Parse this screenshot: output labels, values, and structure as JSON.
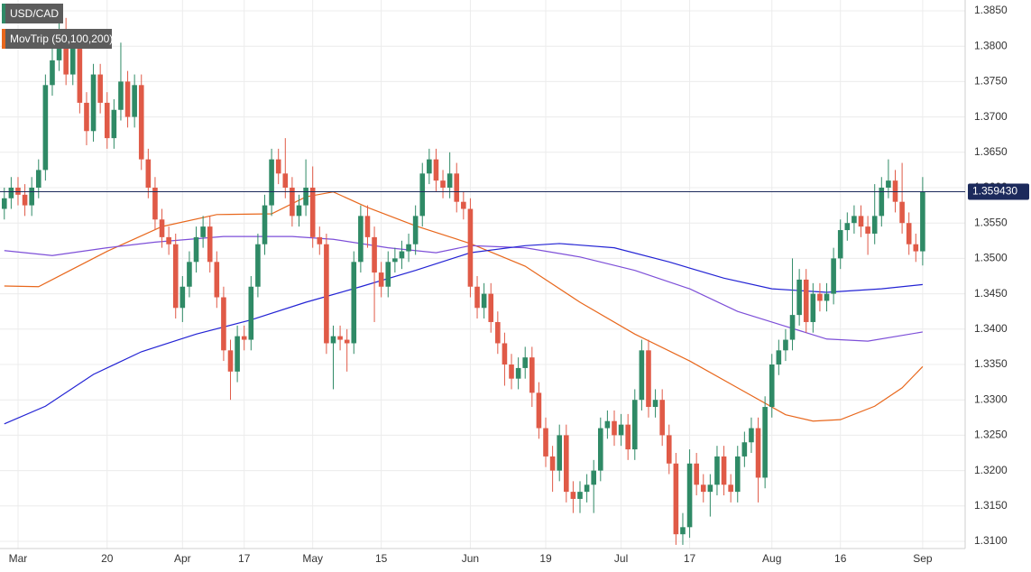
{
  "chart_data": {
    "type": "candlestick",
    "up_color": "#2f8a66",
    "down_color": "#e05a47",
    "x": [
      -2,
      -1,
      0,
      1,
      2,
      3,
      4,
      5,
      6,
      7,
      8,
      9,
      10,
      11,
      12,
      13,
      14,
      15,
      16,
      17,
      18,
      19,
      20,
      21,
      22,
      23,
      24,
      25,
      26,
      27,
      28,
      29,
      30,
      31,
      32,
      33,
      34,
      35,
      36,
      37,
      38,
      39,
      40,
      41,
      42,
      43,
      44,
      45,
      46,
      47,
      48,
      49,
      50,
      51,
      52,
      53,
      54,
      55,
      56,
      57,
      58,
      59,
      60,
      61,
      62,
      63,
      64,
      65,
      66,
      67,
      68,
      69,
      70,
      71,
      72,
      73,
      74,
      75,
      76,
      77,
      78,
      79,
      80,
      81,
      82,
      83,
      84,
      85,
      86,
      87,
      88,
      89,
      90,
      91,
      92,
      93,
      94,
      95,
      96,
      97,
      98,
      99,
      100,
      101,
      102,
      103,
      104,
      105,
      106,
      107,
      108,
      109,
      110,
      111,
      112,
      113,
      114,
      115,
      116,
      117,
      118,
      119,
      120,
      121,
      122,
      123,
      124,
      125,
      126,
      127,
      128,
      129,
      130,
      131,
      132
    ],
    "open": [
      1.357,
      1.3585,
      1.36,
      1.359,
      1.3575,
      1.36,
      1.3625,
      1.3745,
      1.378,
      1.3815,
      1.376,
      1.38,
      1.372,
      1.368,
      1.376,
      1.372,
      1.367,
      1.371,
      1.375,
      1.37,
      1.3745,
      1.364,
      1.36,
      1.3555,
      1.353,
      1.352,
      1.343,
      1.346,
      1.3495,
      1.353,
      1.3545,
      1.3495,
      1.3445,
      1.337,
      1.334,
      1.339,
      1.3385,
      1.346,
      1.352,
      1.3575,
      1.364,
      1.362,
      1.36,
      1.356,
      1.3575,
      1.36,
      1.353,
      1.352,
      1.338,
      1.339,
      1.3385,
      1.338,
      1.3495,
      1.356,
      1.353,
      1.348,
      1.346,
      1.3495,
      1.35,
      1.351,
      1.352,
      1.356,
      1.362,
      1.364,
      1.361,
      1.36,
      1.362,
      1.358,
      1.357,
      1.346,
      1.343,
      1.345,
      1.341,
      1.338,
      1.335,
      1.333,
      1.3345,
      1.336,
      1.331,
      1.326,
      1.322,
      1.32,
      1.325,
      1.317,
      1.316,
      1.317,
      1.318,
      1.32,
      1.326,
      1.327,
      1.325,
      1.3265,
      1.323,
      1.33,
      1.337,
      1.329,
      1.33,
      1.325,
      1.321,
      1.311,
      1.312,
      1.321,
      1.318,
      1.317,
      1.318,
      1.322,
      1.318,
      1.317,
      1.322,
      1.324,
      1.326,
      1.319,
      1.329,
      1.335,
      1.337,
      1.3385,
      1.342,
      1.347,
      1.341,
      1.345,
      1.344,
      1.345,
      1.35,
      1.354,
      1.355,
      1.356,
      1.3545,
      1.3535,
      1.356,
      1.36,
      1.361,
      1.358,
      1.355,
      1.352,
      1.351
    ],
    "high": [
      1.36,
      1.3615,
      1.3615,
      1.3605,
      1.3615,
      1.364,
      1.376,
      1.38,
      1.386,
      1.384,
      1.382,
      1.3815,
      1.3735,
      1.3775,
      1.3775,
      1.3735,
      1.3725,
      1.3805,
      1.3765,
      1.376,
      1.376,
      1.3655,
      1.3615,
      1.357,
      1.3545,
      1.3535,
      1.3475,
      1.351,
      1.3545,
      1.356,
      1.356,
      1.351,
      1.346,
      1.3385,
      1.3405,
      1.3405,
      1.3475,
      1.3535,
      1.359,
      1.3655,
      1.3655,
      1.367,
      1.3615,
      1.359,
      1.364,
      1.363,
      1.3545,
      1.3535,
      1.3405,
      1.3405,
      1.34,
      1.351,
      1.3575,
      1.3575,
      1.3545,
      1.3495,
      1.351,
      1.3515,
      1.3525,
      1.3535,
      1.3575,
      1.3635,
      1.3655,
      1.3655,
      1.3625,
      1.365,
      1.3635,
      1.3595,
      1.3585,
      1.3475,
      1.3465,
      1.3465,
      1.3425,
      1.3395,
      1.3365,
      1.336,
      1.3375,
      1.3375,
      1.3325,
      1.3275,
      1.3235,
      1.3265,
      1.3265,
      1.3185,
      1.3185,
      1.3195,
      1.3215,
      1.3275,
      1.3285,
      1.3285,
      1.328,
      1.328,
      1.3315,
      1.3385,
      1.3385,
      1.3315,
      1.3315,
      1.3265,
      1.3225,
      1.314,
      1.323,
      1.3225,
      1.3195,
      1.3195,
      1.3235,
      1.3235,
      1.3195,
      1.3235,
      1.3255,
      1.3275,
      1.3275,
      1.3305,
      1.3365,
      1.3385,
      1.34,
      1.35,
      1.3485,
      1.3485,
      1.3465,
      1.3465,
      1.3465,
      1.3515,
      1.3555,
      1.3565,
      1.3575,
      1.3575,
      1.356,
      1.3605,
      1.3615,
      1.364,
      1.3625,
      1.3635,
      1.3565,
      1.3535,
      1.3615
    ],
    "low": [
      1.3555,
      1.357,
      1.3575,
      1.356,
      1.356,
      1.3585,
      1.361,
      1.373,
      1.3765,
      1.3745,
      1.3745,
      1.3705,
      1.366,
      1.3665,
      1.3705,
      1.3655,
      1.3655,
      1.3695,
      1.3685,
      1.3685,
      1.3625,
      1.3585,
      1.354,
      1.3515,
      1.3505,
      1.3415,
      1.341,
      1.3445,
      1.348,
      1.3515,
      1.348,
      1.343,
      1.3355,
      1.33,
      1.3325,
      1.337,
      1.337,
      1.3445,
      1.3505,
      1.356,
      1.3605,
      1.3585,
      1.3545,
      1.3545,
      1.356,
      1.3515,
      1.3505,
      1.3365,
      1.3315,
      1.337,
      1.334,
      1.3365,
      1.348,
      1.3515,
      1.341,
      1.3445,
      1.3445,
      1.348,
      1.3485,
      1.3495,
      1.3505,
      1.3545,
      1.3605,
      1.3595,
      1.3585,
      1.3585,
      1.3565,
      1.3555,
      1.3445,
      1.3415,
      1.3415,
      1.3395,
      1.3365,
      1.332,
      1.3315,
      1.3315,
      1.333,
      1.329,
      1.3245,
      1.3205,
      1.317,
      1.3185,
      1.3155,
      1.314,
      1.314,
      1.3155,
      1.314,
      1.3185,
      1.3245,
      1.3235,
      1.3235,
      1.3215,
      1.3215,
      1.3285,
      1.3275,
      1.3275,
      1.3235,
      1.3195,
      1.3095,
      1.3095,
      1.3105,
      1.3165,
      1.3155,
      1.3135,
      1.3165,
      1.3165,
      1.3155,
      1.3155,
      1.3205,
      1.3225,
      1.3155,
      1.3175,
      1.3275,
      1.3335,
      1.3355,
      1.337,
      1.3405,
      1.3395,
      1.3395,
      1.3425,
      1.3425,
      1.3435,
      1.3485,
      1.3525,
      1.3535,
      1.353,
      1.3505,
      1.352,
      1.3545,
      1.3585,
      1.3565,
      1.3535,
      1.3505,
      1.3495,
      1.349
    ],
    "close": [
      1.3585,
      1.36,
      1.359,
      1.3575,
      1.36,
      1.3625,
      1.3745,
      1.378,
      1.3815,
      1.376,
      1.38,
      1.372,
      1.368,
      1.376,
      1.372,
      1.367,
      1.371,
      1.375,
      1.37,
      1.3745,
      1.364,
      1.36,
      1.3555,
      1.353,
      1.352,
      1.343,
      1.346,
      1.3495,
      1.353,
      1.3545,
      1.3495,
      1.3445,
      1.337,
      1.334,
      1.339,
      1.3385,
      1.346,
      1.352,
      1.3575,
      1.364,
      1.362,
      1.36,
      1.356,
      1.3575,
      1.36,
      1.353,
      1.352,
      1.338,
      1.339,
      1.3385,
      1.338,
      1.3495,
      1.356,
      1.353,
      1.348,
      1.346,
      1.3495,
      1.35,
      1.351,
      1.352,
      1.356,
      1.362,
      1.364,
      1.361,
      1.36,
      1.362,
      1.358,
      1.357,
      1.346,
      1.343,
      1.345,
      1.341,
      1.338,
      1.335,
      1.333,
      1.3345,
      1.336,
      1.331,
      1.326,
      1.322,
      1.32,
      1.325,
      1.317,
      1.316,
      1.317,
      1.318,
      1.32,
      1.326,
      1.327,
      1.325,
      1.3265,
      1.323,
      1.33,
      1.337,
      1.329,
      1.33,
      1.325,
      1.321,
      1.311,
      1.312,
      1.321,
      1.318,
      1.317,
      1.318,
      1.322,
      1.318,
      1.317,
      1.322,
      1.324,
      1.326,
      1.319,
      1.329,
      1.335,
      1.337,
      1.3385,
      1.342,
      1.347,
      1.341,
      1.345,
      1.344,
      1.345,
      1.35,
      1.354,
      1.355,
      1.356,
      1.3545,
      1.3535,
      1.356,
      1.36,
      1.361,
      1.358,
      1.355,
      1.352,
      1.351,
      1.35943
    ],
    "name": "USD/CAD",
    "indicator": {
      "name": "MovTrip (50,100,200)",
      "color": "#e8671c",
      "lines": [
        {
          "color": "#e8671c",
          "x": [
            -2,
            3,
            7,
            13,
            21,
            29,
            37,
            42,
            46,
            51,
            58,
            66,
            74,
            82,
            90,
            98,
            105,
            112,
            116,
            120,
            125,
            129,
            132
          ],
          "values": [
            1.3461,
            1.346,
            1.348,
            1.351,
            1.3545,
            1.3562,
            1.3563,
            1.3587,
            1.3594,
            1.3572,
            1.3546,
            1.3521,
            1.3489,
            1.3438,
            1.3393,
            1.3355,
            1.3317,
            1.3279,
            1.327,
            1.3272,
            1.3291,
            1.3317,
            1.3347
          ]
        },
        {
          "color": "#7d4fd8",
          "x": [
            -2,
            5,
            13,
            20,
            30,
            40,
            46,
            54,
            61,
            66,
            74,
            82,
            90,
            98,
            105,
            112,
            118,
            124,
            132
          ],
          "values": [
            1.3511,
            1.3504,
            1.3515,
            1.3523,
            1.3531,
            1.3531,
            1.3527,
            1.3515,
            1.3508,
            1.3518,
            1.3515,
            1.3502,
            1.3483,
            1.3457,
            1.3425,
            1.3404,
            1.3386,
            1.3383,
            1.3396
          ]
        },
        {
          "color": "#2323d4",
          "x": [
            -2,
            4,
            11,
            18,
            26,
            34,
            42,
            50,
            58,
            66,
            74,
            79,
            87,
            95,
            103,
            110,
            118,
            126,
            132
          ],
          "values": [
            1.3266,
            1.3291,
            1.3336,
            1.3368,
            1.3393,
            1.3413,
            1.3438,
            1.346,
            1.3483,
            1.3508,
            1.3518,
            1.3521,
            1.3515,
            1.3495,
            1.3472,
            1.3457,
            1.3452,
            1.3457,
            1.3463
          ]
        }
      ]
    },
    "last_price": {
      "value": 1.35943,
      "label": "1.359430"
    },
    "xlim": [
      -2.63,
      138.2
    ],
    "xticks": [
      {
        "value": 0,
        "label": "Mar"
      },
      {
        "value": 13,
        "label": "20"
      },
      {
        "value": 24,
        "label": "Apr"
      },
      {
        "value": 33,
        "label": "17"
      },
      {
        "value": 43,
        "label": "May"
      },
      {
        "value": 53,
        "label": "15"
      },
      {
        "value": 66,
        "label": "Jun"
      },
      {
        "value": 77,
        "label": "19"
      },
      {
        "value": 88,
        "label": "Jul"
      },
      {
        "value": 98,
        "label": "17"
      },
      {
        "value": 110,
        "label": "Aug"
      },
      {
        "value": 120,
        "label": "16"
      },
      {
        "value": 132,
        "label": "Sep"
      }
    ],
    "ylim": [
      1.30898,
      1.38653
    ],
    "yticks": [
      {
        "value": 1.31,
        "label": "1.3100"
      },
      {
        "value": 1.315,
        "label": "1.3150"
      },
      {
        "value": 1.32,
        "label": "1.3200"
      },
      {
        "value": 1.325,
        "label": "1.3250"
      },
      {
        "value": 1.33,
        "label": "1.3300"
      },
      {
        "value": 1.335,
        "label": "1.3350"
      },
      {
        "value": 1.34,
        "label": "1.3400"
      },
      {
        "value": 1.345,
        "label": "1.3450"
      },
      {
        "value": 1.35,
        "label": "1.3500"
      },
      {
        "value": 1.355,
        "label": "1.3550"
      },
      {
        "value": 1.36,
        "label": "1.3600"
      },
      {
        "value": 1.365,
        "label": "1.3650"
      },
      {
        "value": 1.37,
        "label": "1.3700"
      },
      {
        "value": 1.375,
        "label": "1.3750"
      },
      {
        "value": 1.38,
        "label": "1.3800"
      },
      {
        "value": 1.385,
        "label": "1.3850"
      }
    ],
    "grid": true
  }
}
